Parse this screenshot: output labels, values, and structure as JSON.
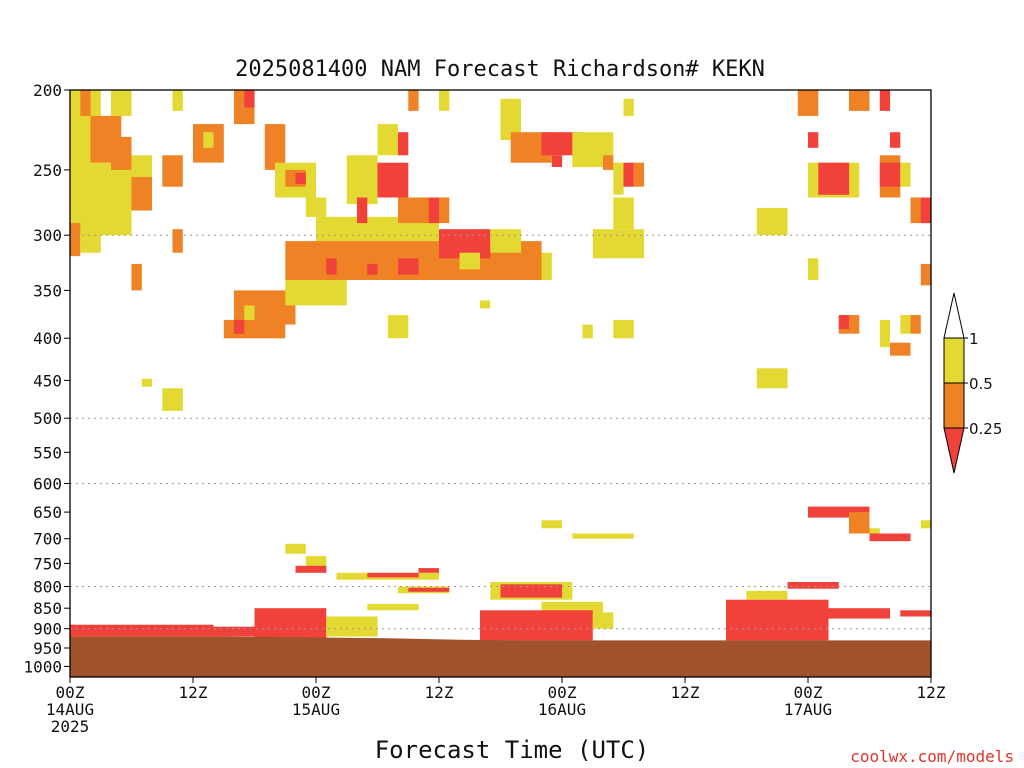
{
  "chart_data": {
    "type": "heatmap",
    "title": "2025081400 NAM Forecast Richardson# KEKN",
    "xlabel": "Forecast Time (UTC)",
    "ylabel": "",
    "y_scale": "log-pressure",
    "y_axis_reversed": true,
    "ylim": [
      1030,
      200
    ],
    "y_ticks": [
      200,
      250,
      300,
      350,
      400,
      450,
      500,
      550,
      600,
      650,
      700,
      750,
      800,
      850,
      900,
      950,
      1000
    ],
    "y_grid_levels": [
      300,
      500,
      600,
      800,
      900,
      1000
    ],
    "xlim_hours": [
      0,
      84
    ],
    "x_ticks": [
      {
        "hour": 0,
        "lines": [
          "00Z",
          "14AUG",
          "2025"
        ]
      },
      {
        "hour": 12,
        "lines": [
          "12Z"
        ]
      },
      {
        "hour": 24,
        "lines": [
          "00Z",
          "15AUG"
        ]
      },
      {
        "hour": 36,
        "lines": [
          "12Z"
        ]
      },
      {
        "hour": 48,
        "lines": [
          "00Z",
          "16AUG"
        ]
      },
      {
        "hour": 60,
        "lines": [
          "12Z"
        ]
      },
      {
        "hour": 72,
        "lines": [
          "00Z",
          "17AUG"
        ]
      },
      {
        "hour": 84,
        "lines": [
          "12Z"
        ]
      }
    ],
    "legend": {
      "placement": "right",
      "levels": [
        "1",
        "0.5",
        "0.25"
      ],
      "colors": {
        "gt1": "#ffffff",
        "b05_1": "#e3d932",
        "b025_05": "#ee8224",
        "lt025": "#f0413a"
      }
    },
    "ground_color": "#a0522d",
    "ground_pressure": [
      {
        "hour": 0,
        "p": 920
      },
      {
        "hour": 15,
        "p": 920
      },
      {
        "hour": 22,
        "p": 922
      },
      {
        "hour": 30,
        "p": 924
      },
      {
        "hour": 34,
        "p": 926
      },
      {
        "hour": 38,
        "p": 928
      },
      {
        "hour": 44,
        "p": 930
      },
      {
        "hour": 60,
        "p": 930
      },
      {
        "hour": 84,
        "p": 930
      }
    ],
    "regions": [
      {
        "h0": 0,
        "h1": 3,
        "p0": 200,
        "p1": 250,
        "class": "b05_1"
      },
      {
        "h0": 1,
        "h1": 2,
        "p0": 200,
        "p1": 215,
        "class": "b025_05"
      },
      {
        "h0": 2,
        "h1": 5,
        "p0": 215,
        "p1": 245,
        "class": "b025_05"
      },
      {
        "h0": 4,
        "h1": 6,
        "p0": 200,
        "p1": 215,
        "class": "b05_1"
      },
      {
        "h0": 0,
        "h1": 6,
        "p0": 245,
        "p1": 300,
        "class": "b05_1"
      },
      {
        "h0": 4,
        "h1": 6,
        "p0": 228,
        "p1": 250,
        "class": "b025_05"
      },
      {
        "h0": 0,
        "h1": 1,
        "p0": 290,
        "p1": 318,
        "class": "b025_05"
      },
      {
        "h0": 1,
        "h1": 3,
        "p0": 295,
        "p1": 315,
        "class": "b05_1"
      },
      {
        "h0": 6,
        "h1": 8,
        "p0": 240,
        "p1": 275,
        "class": "b05_1"
      },
      {
        "h0": 6,
        "h1": 8,
        "p0": 255,
        "p1": 280,
        "class": "b025_05"
      },
      {
        "h0": 6,
        "h1": 7,
        "p0": 325,
        "p1": 350,
        "class": "b025_05"
      },
      {
        "h0": 9,
        "h1": 11,
        "p0": 240,
        "p1": 262,
        "class": "b025_05"
      },
      {
        "h0": 10,
        "h1": 11,
        "p0": 295,
        "p1": 315,
        "class": "b025_05"
      },
      {
        "h0": 10,
        "h1": 11,
        "p0": 200,
        "p1": 212,
        "class": "b05_1"
      },
      {
        "h0": 12,
        "h1": 15,
        "p0": 220,
        "p1": 245,
        "class": "b025_05"
      },
      {
        "h0": 13,
        "h1": 14,
        "p0": 225,
        "p1": 235,
        "class": "b05_1"
      },
      {
        "h0": 16,
        "h1": 18,
        "p0": 200,
        "p1": 220,
        "class": "b025_05"
      },
      {
        "h0": 17,
        "h1": 18,
        "p0": 200,
        "p1": 210,
        "class": "lt025"
      },
      {
        "h0": 19,
        "h1": 21,
        "p0": 220,
        "p1": 250,
        "class": "b025_05"
      },
      {
        "h0": 20,
        "h1": 24,
        "p0": 245,
        "p1": 270,
        "class": "b05_1"
      },
      {
        "h0": 21,
        "h1": 23,
        "p0": 250,
        "p1": 262,
        "class": "b025_05"
      },
      {
        "h0": 22,
        "h1": 23,
        "p0": 252,
        "p1": 260,
        "class": "lt025"
      },
      {
        "h0": 23,
        "h1": 25,
        "p0": 270,
        "p1": 285,
        "class": "b05_1"
      },
      {
        "h0": 24,
        "h1": 36,
        "p0": 285,
        "p1": 305,
        "class": "b05_1"
      },
      {
        "h0": 27,
        "h1": 30,
        "p0": 240,
        "p1": 275,
        "class": "b05_1"
      },
      {
        "h0": 30,
        "h1": 33,
        "p0": 245,
        "p1": 270,
        "class": "lt025"
      },
      {
        "h0": 28,
        "h1": 29,
        "p0": 270,
        "p1": 290,
        "class": "lt025"
      },
      {
        "h0": 30,
        "h1": 32,
        "p0": 220,
        "p1": 240,
        "class": "b05_1"
      },
      {
        "h0": 32,
        "h1": 33,
        "p0": 225,
        "p1": 240,
        "class": "lt025"
      },
      {
        "h0": 32,
        "h1": 37,
        "p0": 270,
        "p1": 290,
        "class": "b025_05"
      },
      {
        "h0": 35,
        "h1": 36,
        "p0": 270,
        "p1": 290,
        "class": "lt025"
      },
      {
        "h0": 33,
        "h1": 34,
        "p0": 200,
        "p1": 212,
        "class": "b025_05"
      },
      {
        "h0": 36,
        "h1": 37,
        "p0": 200,
        "p1": 212,
        "class": "b05_1"
      },
      {
        "h0": 21,
        "h1": 46,
        "p0": 305,
        "p1": 340,
        "class": "b025_05"
      },
      {
        "h0": 36,
        "h1": 41,
        "p0": 295,
        "p1": 320,
        "class": "lt025"
      },
      {
        "h0": 41,
        "h1": 44,
        "p0": 295,
        "p1": 315,
        "class": "b05_1"
      },
      {
        "h0": 25,
        "h1": 26,
        "p0": 320,
        "p1": 335,
        "class": "lt025"
      },
      {
        "h0": 29,
        "h1": 30,
        "p0": 325,
        "p1": 335,
        "class": "lt025"
      },
      {
        "h0": 32,
        "h1": 34,
        "p0": 320,
        "p1": 335,
        "class": "lt025"
      },
      {
        "h0": 38,
        "h1": 40,
        "p0": 315,
        "p1": 330,
        "class": "b05_1"
      },
      {
        "h0": 46,
        "h1": 47,
        "p0": 315,
        "p1": 340,
        "class": "b05_1"
      },
      {
        "h0": 16,
        "h1": 22,
        "p0": 350,
        "p1": 385,
        "class": "b025_05"
      },
      {
        "h0": 21,
        "h1": 27,
        "p0": 340,
        "p1": 365,
        "class": "b05_1"
      },
      {
        "h0": 15,
        "h1": 21,
        "p0": 380,
        "p1": 400,
        "class": "b025_05"
      },
      {
        "h0": 16,
        "h1": 17,
        "p0": 380,
        "p1": 395,
        "class": "lt025"
      },
      {
        "h0": 17,
        "h1": 18,
        "p0": 365,
        "p1": 380,
        "class": "b05_1"
      },
      {
        "h0": 42,
        "h1": 44,
        "p0": 205,
        "p1": 230,
        "class": "b05_1"
      },
      {
        "h0": 43,
        "h1": 47,
        "p0": 225,
        "p1": 245,
        "class": "b025_05"
      },
      {
        "h0": 46,
        "h1": 50,
        "p0": 225,
        "p1": 240,
        "class": "lt025"
      },
      {
        "h0": 47,
        "h1": 48,
        "p0": 240,
        "p1": 248,
        "class": "lt025"
      },
      {
        "h0": 49,
        "h1": 53,
        "p0": 225,
        "p1": 248,
        "class": "b05_1"
      },
      {
        "h0": 52,
        "h1": 53,
        "p0": 240,
        "p1": 250,
        "class": "b025_05"
      },
      {
        "h0": 53,
        "h1": 54,
        "p0": 245,
        "p1": 268,
        "class": "b05_1"
      },
      {
        "h0": 54,
        "h1": 55,
        "p0": 245,
        "p1": 262,
        "class": "lt025"
      },
      {
        "h0": 55,
        "h1": 56,
        "p0": 245,
        "p1": 262,
        "class": "b025_05"
      },
      {
        "h0": 53,
        "h1": 55,
        "p0": 270,
        "p1": 295,
        "class": "b05_1"
      },
      {
        "h0": 51,
        "h1": 56,
        "p0": 295,
        "p1": 320,
        "class": "b05_1"
      },
      {
        "h0": 54,
        "h1": 55,
        "p0": 205,
        "p1": 215,
        "class": "b05_1"
      },
      {
        "h0": 50,
        "h1": 51,
        "p0": 385,
        "p1": 400,
        "class": "b05_1"
      },
      {
        "h0": 53,
        "h1": 55,
        "p0": 380,
        "p1": 400,
        "class": "b05_1"
      },
      {
        "h0": 31,
        "h1": 33,
        "p0": 375,
        "p1": 400,
        "class": "b05_1"
      },
      {
        "h0": 40,
        "h1": 41,
        "p0": 360,
        "p1": 368,
        "class": "b05_1"
      },
      {
        "h0": 9,
        "h1": 11,
        "p0": 460,
        "p1": 490,
        "class": "b05_1"
      },
      {
        "h0": 7,
        "h1": 8,
        "p0": 448,
        "p1": 458,
        "class": "b05_1"
      },
      {
        "h0": 67,
        "h1": 70,
        "p0": 278,
        "p1": 300,
        "class": "b05_1"
      },
      {
        "h0": 71,
        "h1": 73,
        "p0": 200,
        "p1": 215,
        "class": "b025_05"
      },
      {
        "h0": 72,
        "h1": 73,
        "p0": 225,
        "p1": 235,
        "class": "lt025"
      },
      {
        "h0": 72,
        "h1": 77,
        "p0": 245,
        "p1": 270,
        "class": "b05_1"
      },
      {
        "h0": 73,
        "h1": 76,
        "p0": 245,
        "p1": 268,
        "class": "lt025"
      },
      {
        "h0": 76,
        "h1": 78,
        "p0": 200,
        "p1": 212,
        "class": "b025_05"
      },
      {
        "h0": 79,
        "h1": 80,
        "p0": 200,
        "p1": 212,
        "class": "lt025"
      },
      {
        "h0": 79,
        "h1": 81,
        "p0": 240,
        "p1": 270,
        "class": "b025_05"
      },
      {
        "h0": 79,
        "h1": 81,
        "p0": 245,
        "p1": 262,
        "class": "lt025"
      },
      {
        "h0": 81,
        "h1": 82,
        "p0": 245,
        "p1": 262,
        "class": "b05_1"
      },
      {
        "h0": 80,
        "h1": 81,
        "p0": 225,
        "p1": 235,
        "class": "lt025"
      },
      {
        "h0": 82,
        "h1": 84,
        "p0": 270,
        "p1": 290,
        "class": "b025_05"
      },
      {
        "h0": 83,
        "h1": 84,
        "p0": 270,
        "p1": 290,
        "class": "lt025"
      },
      {
        "h0": 83,
        "h1": 84,
        "p0": 325,
        "p1": 345,
        "class": "b025_05"
      },
      {
        "h0": 72,
        "h1": 73,
        "p0": 320,
        "p1": 340,
        "class": "b05_1"
      },
      {
        "h0": 75,
        "h1": 77,
        "p0": 375,
        "p1": 395,
        "class": "b025_05"
      },
      {
        "h0": 75,
        "h1": 76,
        "p0": 375,
        "p1": 390,
        "class": "lt025"
      },
      {
        "h0": 79,
        "h1": 80,
        "p0": 380,
        "p1": 410,
        "class": "b05_1"
      },
      {
        "h0": 80,
        "h1": 82,
        "p0": 405,
        "p1": 420,
        "class": "b025_05"
      },
      {
        "h0": 81,
        "h1": 82,
        "p0": 375,
        "p1": 395,
        "class": "b05_1"
      },
      {
        "h0": 82,
        "h1": 83,
        "p0": 375,
        "p1": 395,
        "class": "b025_05"
      },
      {
        "h0": 67,
        "h1": 70,
        "p0": 435,
        "p1": 460,
        "class": "b05_1"
      },
      {
        "h0": 46,
        "h1": 48,
        "p0": 665,
        "p1": 680,
        "class": "b05_1"
      },
      {
        "h0": 49,
        "h1": 55,
        "p0": 690,
        "p1": 700,
        "class": "b05_1"
      },
      {
        "h0": 21,
        "h1": 23,
        "p0": 710,
        "p1": 730,
        "class": "b05_1"
      },
      {
        "h0": 23,
        "h1": 25,
        "p0": 735,
        "p1": 760,
        "class": "b05_1"
      },
      {
        "h0": 22,
        "h1": 25,
        "p0": 755,
        "p1": 770,
        "class": "lt025"
      },
      {
        "h0": 26,
        "h1": 36,
        "p0": 770,
        "p1": 785,
        "class": "b05_1"
      },
      {
        "h0": 29,
        "h1": 34,
        "p0": 770,
        "p1": 780,
        "class": "lt025"
      },
      {
        "h0": 34,
        "h1": 36,
        "p0": 760,
        "p1": 770,
        "class": "lt025"
      },
      {
        "h0": 32,
        "h1": 37,
        "p0": 800,
        "p1": 815,
        "class": "b05_1"
      },
      {
        "h0": 33,
        "h1": 37,
        "p0": 803,
        "p1": 812,
        "class": "lt025"
      },
      {
        "h0": 41,
        "h1": 49,
        "p0": 790,
        "p1": 830,
        "class": "b05_1"
      },
      {
        "h0": 42,
        "h1": 48,
        "p0": 795,
        "p1": 825,
        "class": "lt025"
      },
      {
        "h0": 46,
        "h1": 52,
        "p0": 835,
        "p1": 880,
        "class": "b05_1"
      },
      {
        "h0": 40,
        "h1": 51,
        "p0": 855,
        "p1": 930,
        "class": "lt025"
      },
      {
        "h0": 51,
        "h1": 53,
        "p0": 860,
        "p1": 900,
        "class": "b05_1"
      },
      {
        "h0": 18,
        "h1": 25,
        "p0": 850,
        "p1": 925,
        "class": "lt025"
      },
      {
        "h0": 14,
        "h1": 18,
        "p0": 895,
        "p1": 920,
        "class": "lt025"
      },
      {
        "h0": 0,
        "h1": 14,
        "p0": 890,
        "p1": 920,
        "class": "lt025"
      },
      {
        "h0": 25,
        "h1": 30,
        "p0": 870,
        "p1": 920,
        "class": "b05_1"
      },
      {
        "h0": 29,
        "h1": 34,
        "p0": 840,
        "p1": 855,
        "class": "b05_1"
      },
      {
        "h0": 64,
        "h1": 74,
        "p0": 830,
        "p1": 930,
        "class": "lt025"
      },
      {
        "h0": 66,
        "h1": 70,
        "p0": 810,
        "p1": 830,
        "class": "b05_1"
      },
      {
        "h0": 70,
        "h1": 75,
        "p0": 790,
        "p1": 805,
        "class": "lt025"
      },
      {
        "h0": 72,
        "h1": 78,
        "p0": 640,
        "p1": 660,
        "class": "lt025"
      },
      {
        "h0": 76,
        "h1": 78,
        "p0": 650,
        "p1": 690,
        "class": "b025_05"
      },
      {
        "h0": 78,
        "h1": 79,
        "p0": 680,
        "p1": 700,
        "class": "b05_1"
      },
      {
        "h0": 78,
        "h1": 82,
        "p0": 690,
        "p1": 705,
        "class": "lt025"
      },
      {
        "h0": 83,
        "h1": 84,
        "p0": 665,
        "p1": 680,
        "class": "b05_1"
      },
      {
        "h0": 81,
        "h1": 84,
        "p0": 855,
        "p1": 870,
        "class": "lt025"
      },
      {
        "h0": 74,
        "h1": 80,
        "p0": 850,
        "p1": 875,
        "class": "lt025"
      }
    ]
  },
  "credit": "coolwx.com/models"
}
